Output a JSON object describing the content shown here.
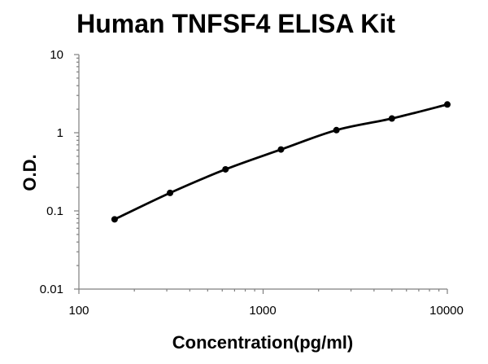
{
  "chart_data": {
    "type": "scatter",
    "title": "Human TNFSF4 ELISA Kit",
    "xlabel": "Concentration(pg/ml)",
    "ylabel": "O.D.",
    "xscale": "log",
    "yscale": "log",
    "xlim": [
      100,
      10000
    ],
    "ylim": [
      0.01,
      10
    ],
    "xticks": [
      "100",
      "1000",
      "10000"
    ],
    "yticks": [
      "10",
      "1",
      "0.1",
      "0.01"
    ],
    "grid": false,
    "legend": "none",
    "series": [
      {
        "x": [
          156.25,
          312.5,
          625,
          1250,
          2500,
          5000,
          10000
        ],
        "y": [
          0.078,
          0.17,
          0.34,
          0.61,
          1.08,
          1.52,
          2.3
        ],
        "fit": "smooth curve through points"
      }
    ]
  }
}
